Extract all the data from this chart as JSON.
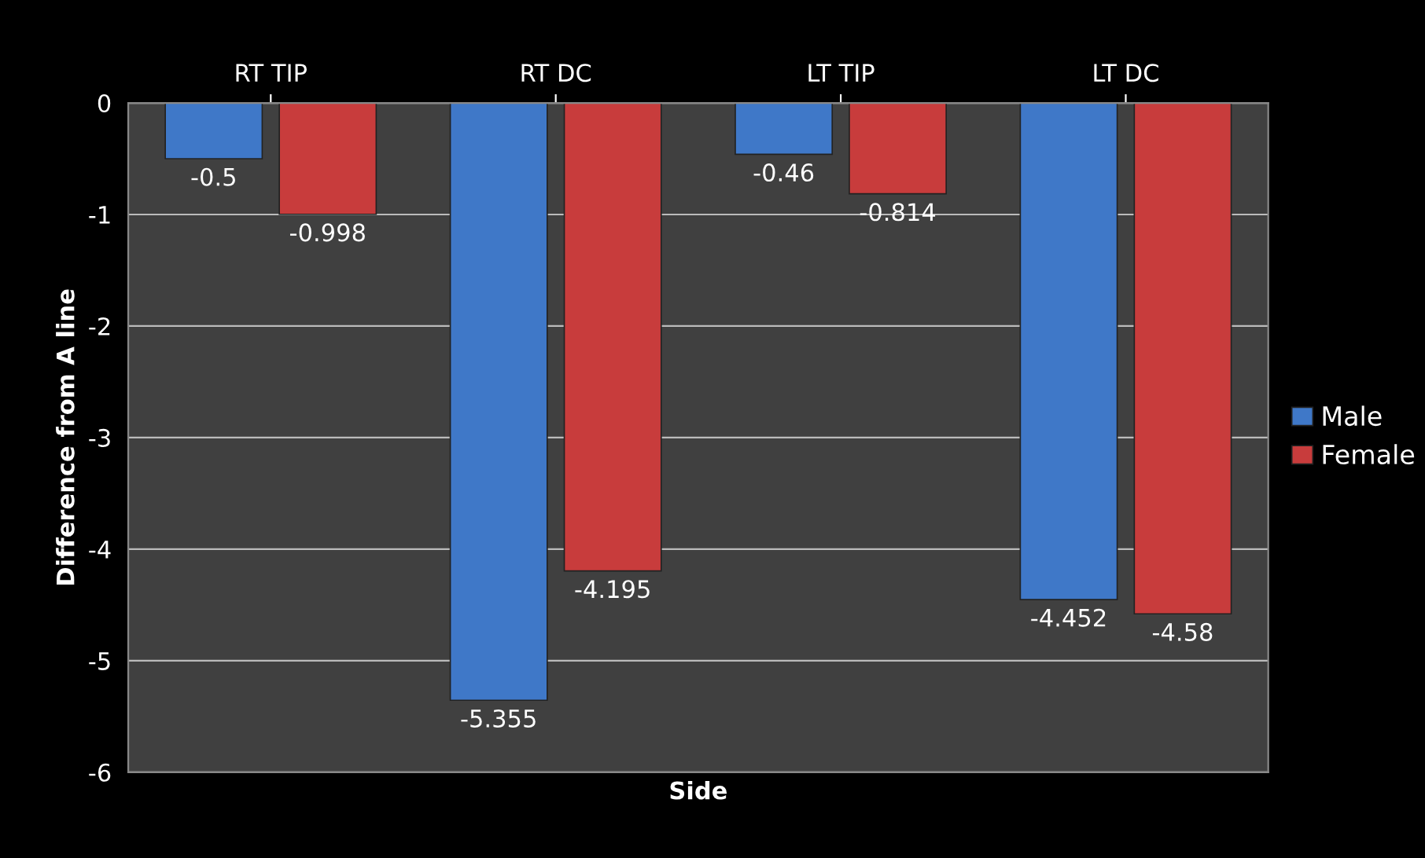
{
  "chart_data": {
    "type": "bar",
    "xlabel": "Side",
    "ylabel": "Difference from A line",
    "categories": [
      "RT TIP",
      "RT DC",
      "LT TIP",
      "LT DC"
    ],
    "series": [
      {
        "name": "Male",
        "color": "#3f78c8",
        "values": [
          -0.5,
          -5.355,
          -0.46,
          -4.452
        ]
      },
      {
        "name": "Female",
        "color": "#c83c3c",
        "values": [
          -0.998,
          -4.195,
          -0.814,
          -4.58
        ]
      }
    ],
    "ylim": [
      -6,
      0
    ],
    "yticks": [
      0,
      -1,
      -2,
      -3,
      -4,
      -5,
      -6
    ],
    "grid": "y",
    "legend": "right",
    "data_labels": true
  }
}
